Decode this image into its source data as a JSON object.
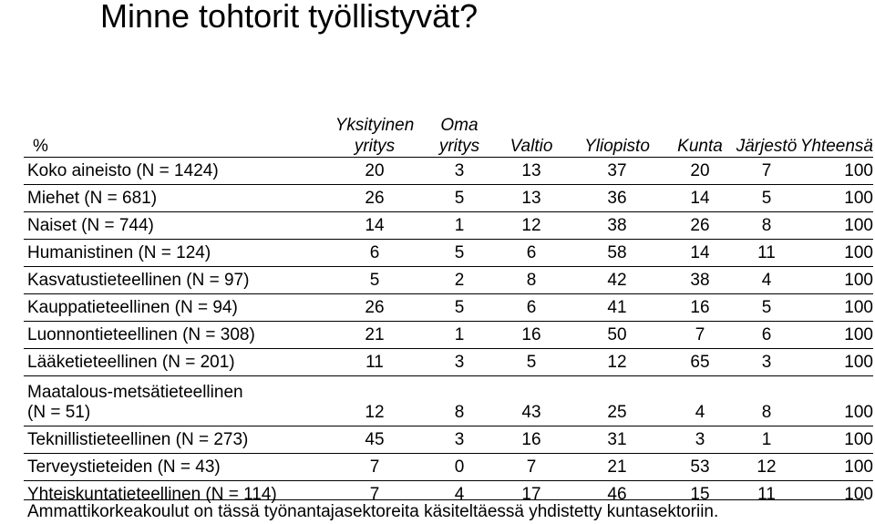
{
  "title": "Minne tohtorit työllistyvät?",
  "table": {
    "header": {
      "percent": "%",
      "columns": [
        {
          "line1": "Yksityinen",
          "line2": "yritys"
        },
        {
          "line1": "Oma",
          "line2": "yritys"
        },
        {
          "line1": "",
          "line2": "Valtio"
        },
        {
          "line1": "",
          "line2": "Yliopisto"
        },
        {
          "line1": "",
          "line2": "Kunta"
        },
        {
          "line1": "",
          "line2": "Järjestö"
        },
        {
          "line1": "",
          "line2": "Yhteensä"
        }
      ]
    },
    "rows": [
      {
        "label": "Koko aineisto (N = 1424)",
        "values": [
          "20",
          "3",
          "13",
          "37",
          "20",
          "7",
          "100"
        ]
      },
      {
        "label": "Miehet (N = 681)",
        "values": [
          "26",
          "5",
          "13",
          "36",
          "14",
          "5",
          "100"
        ]
      },
      {
        "label": "Naiset (N = 744)",
        "values": [
          "14",
          "1",
          "12",
          "38",
          "26",
          "8",
          "100"
        ]
      },
      {
        "label": "Humanistinen (N = 124)",
        "values": [
          "6",
          "5",
          "6",
          "58",
          "14",
          "11",
          "100"
        ]
      },
      {
        "label": "Kasvatustieteellinen (N = 97)",
        "values": [
          "5",
          "2",
          "8",
          "42",
          "38",
          "4",
          "100"
        ]
      },
      {
        "label": "Kauppatieteellinen (N = 94)",
        "values": [
          "26",
          "5",
          "6",
          "41",
          "16",
          "5",
          "100"
        ]
      },
      {
        "label": "Luonnontieteellinen (N = 308)",
        "values": [
          "21",
          "1",
          "16",
          "50",
          "7",
          "6",
          "100"
        ]
      },
      {
        "label": "Lääketieteellinen (N = 201)",
        "values": [
          "11",
          "3",
          "5",
          "12",
          "65",
          "3",
          "100"
        ]
      },
      {
        "label": "Maatalous-metsätieteellinen",
        "label2": "(N = 51)",
        "values": [
          "12",
          "8",
          "43",
          "25",
          "4",
          "8",
          "100"
        ]
      },
      {
        "label": "Teknillistieteellinen (N = 273)",
        "values": [
          "45",
          "3",
          "16",
          "31",
          "3",
          "1",
          "100"
        ]
      },
      {
        "label": "Terveystieteiden (N = 43)",
        "values": [
          "7",
          "0",
          "7",
          "21",
          "53",
          "12",
          "100"
        ]
      },
      {
        "label": "Yhteiskuntatieteellinen (N = 114)",
        "values": [
          "7",
          "4",
          "17",
          "46",
          "15",
          "11",
          "100"
        ]
      }
    ]
  },
  "footnote": "Ammattikorkeakoulut on tässä työnantajasektoreita käsiteltäessä yhdistetty kuntasektoriin."
}
